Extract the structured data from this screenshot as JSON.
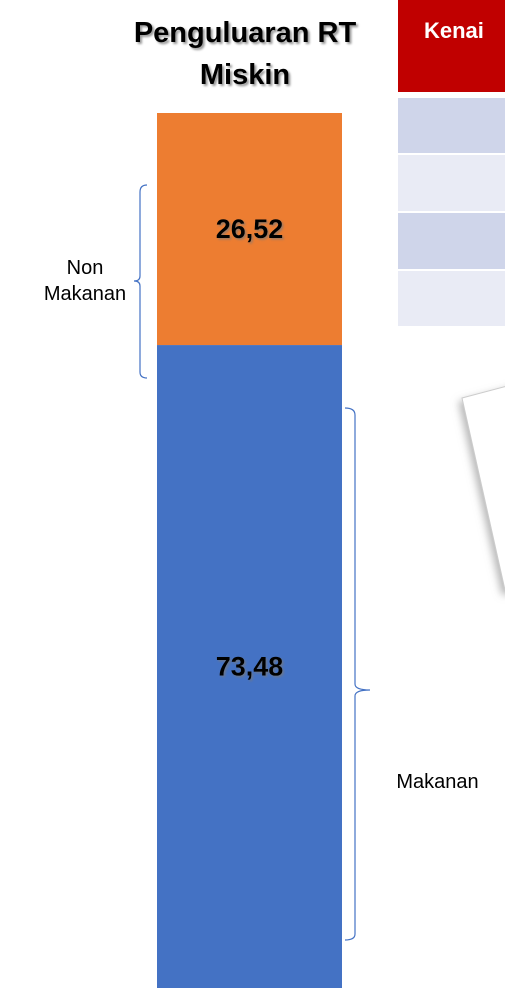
{
  "chart_data": {
    "type": "stacked_bar",
    "title": "Penguluaran RT Miskin",
    "ylim": [
      0,
      100
    ],
    "series": [
      {
        "name": "Makanan",
        "color": "#4472c4",
        "values": [
          73.48
        ],
        "value_labels": [
          "73,48"
        ]
      },
      {
        "name": "Non Makanan",
        "color": "#ed7d31",
        "values": [
          26.52
        ],
        "value_labels": [
          "26,52"
        ]
      }
    ]
  },
  "table": {
    "header": "Kenai"
  }
}
